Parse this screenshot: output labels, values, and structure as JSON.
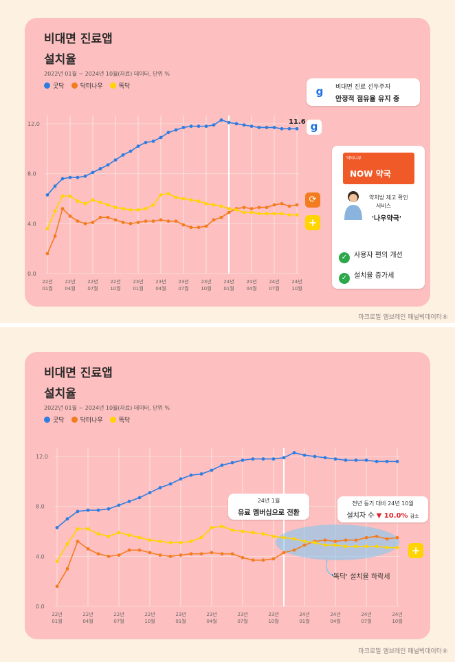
{
  "chart1": {
    "title_line1": "비대면 진료앱",
    "title_line2": "설치율",
    "subtitle": "2022년 01월 ~ 2024년 10월(자료) 데이터, 단위 %",
    "legend": [
      {
        "label": "굿닥",
        "color": "#2f7de1"
      },
      {
        "label": "닥터나우",
        "color": "#f47c20"
      },
      {
        "label": "똑닥",
        "color": "#ffd400"
      }
    ],
    "end_label": "11.6",
    "callout_google": {
      "line1": "비대면 진료 선두주자",
      "line2": "안정적 점유율 유지 중"
    },
    "drnow_card": {
      "banner_brand": "닥터나우",
      "banner_logo": "NOW 약국",
      "person_text_line1": "약처방 제고 확인",
      "person_text_line2": "서비스",
      "service_name": "'나우약국'",
      "check1": "사용자 편의 개선",
      "check2": "설치율 증가세"
    },
    "source": "마크로밀 엠브레인 패널빅데이터®"
  },
  "chart2": {
    "title_line1": "비대면 진료앱",
    "title_line2": "설치율",
    "subtitle": "2022년 01월 ~ 2024년 10월(자료) 데이터, 단위 %",
    "legend": [
      {
        "label": "굿닥",
        "color": "#2f7de1"
      },
      {
        "label": "닥터나우",
        "color": "#f47c20"
      },
      {
        "label": "똑닥",
        "color": "#ffd400"
      }
    ],
    "callout_paid": {
      "line1": "24년 1월",
      "line2": "유료 멤버십으로 전환"
    },
    "callout_drop": {
      "line1": "전년 동기 대비 24년 10월",
      "line2_prefix": "설치자 수",
      "line2_value": "▼ 10.0%",
      "line2_suffix": "감소"
    },
    "ellipse_label": "'똑닥' 설치율 하락세",
    "source": "마크로밀 엠브레인 패널빅데이터®"
  },
  "chart_data": {
    "type": "line",
    "ylim": [
      0,
      12
    ],
    "y_ticks": [
      "0.0",
      "4.0",
      "8.0",
      "12.0"
    ],
    "x_ticks": [
      "22년 01월",
      "22년 04월",
      "22년 07월",
      "22년 10월",
      "23년 01월",
      "23년 04월",
      "23년 07월",
      "23년 10월",
      "24년 01월",
      "24년 04월",
      "24년 07월",
      "24년 10월"
    ],
    "x": [
      "22.01",
      "22.02",
      "22.03",
      "22.04",
      "22.05",
      "22.06",
      "22.07",
      "22.08",
      "22.09",
      "22.10",
      "22.11",
      "22.12",
      "23.01",
      "23.02",
      "23.03",
      "23.04",
      "23.05",
      "23.06",
      "23.07",
      "23.08",
      "23.09",
      "23.10",
      "23.11",
      "23.12",
      "24.01",
      "24.02",
      "24.03",
      "24.04",
      "24.05",
      "24.06",
      "24.07",
      "24.08",
      "24.09",
      "24.10"
    ],
    "series": [
      {
        "name": "굿닥",
        "color": "#2f7de1",
        "values": [
          6.3,
          7.0,
          7.6,
          7.7,
          7.7,
          7.8,
          8.1,
          8.4,
          8.7,
          9.1,
          9.5,
          9.8,
          10.2,
          10.5,
          10.6,
          10.9,
          11.3,
          11.5,
          11.7,
          11.8,
          11.8,
          11.8,
          11.9,
          12.3,
          12.1,
          12.0,
          11.9,
          11.8,
          11.7,
          11.7,
          11.7,
          11.6,
          11.6,
          11.6
        ]
      },
      {
        "name": "닥터나우",
        "color": "#f47c20",
        "values": [
          1.6,
          3.0,
          5.2,
          4.6,
          4.2,
          4.0,
          4.1,
          4.5,
          4.5,
          4.3,
          4.1,
          4.0,
          4.1,
          4.2,
          4.2,
          4.3,
          4.2,
          4.2,
          3.9,
          3.7,
          3.7,
          3.8,
          4.3,
          4.5,
          4.9,
          5.2,
          5.3,
          5.2,
          5.3,
          5.3,
          5.5,
          5.6,
          5.4,
          5.5
        ]
      },
      {
        "name": "똑닥",
        "color": "#ffd400",
        "values": [
          3.6,
          5.0,
          6.2,
          6.2,
          5.8,
          5.6,
          5.9,
          5.7,
          5.5,
          5.3,
          5.2,
          5.1,
          5.1,
          5.2,
          5.5,
          6.3,
          6.4,
          6.1,
          6.0,
          5.9,
          5.8,
          5.6,
          5.5,
          5.4,
          5.2,
          5.1,
          4.9,
          4.9,
          4.8,
          4.8,
          4.8,
          4.8,
          4.7,
          4.7
        ]
      }
    ]
  }
}
